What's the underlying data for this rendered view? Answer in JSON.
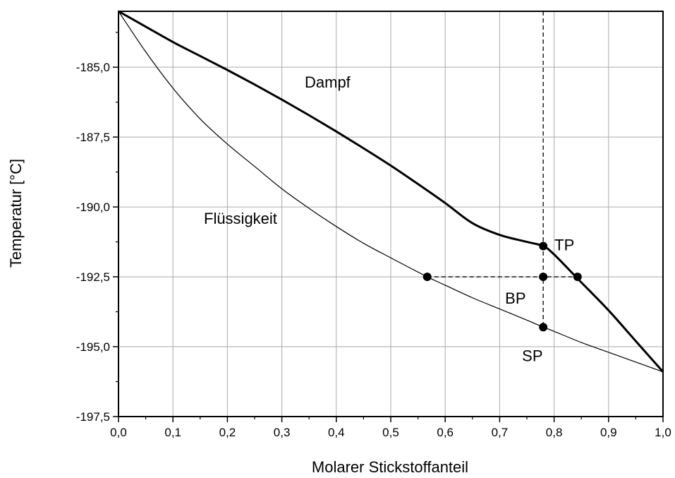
{
  "chart_data": {
    "type": "line",
    "xlabel": "Molarer Stickstoffanteil",
    "ylabel": "Temperatur [°C]",
    "xlim": [
      0.0,
      1.0
    ],
    "ylim": [
      -197.5,
      -183.0
    ],
    "x_ticks": [
      {
        "value": 0.0,
        "label": "0,0"
      },
      {
        "value": 0.1,
        "label": "0,1"
      },
      {
        "value": 0.2,
        "label": "0,2"
      },
      {
        "value": 0.3,
        "label": "0,3"
      },
      {
        "value": 0.4,
        "label": "0,4"
      },
      {
        "value": 0.5,
        "label": "0,5"
      },
      {
        "value": 0.6,
        "label": "0,6"
      },
      {
        "value": 0.7,
        "label": "0,7"
      },
      {
        "value": 0.8,
        "label": "0,8"
      },
      {
        "value": 0.9,
        "label": "0,9"
      },
      {
        "value": 1.0,
        "label": "1,0"
      }
    ],
    "y_ticks": [
      {
        "value": -185.0,
        "label": "-185,0"
      },
      {
        "value": -187.5,
        "label": "-187,5"
      },
      {
        "value": -190.0,
        "label": "-190,0"
      },
      {
        "value": -192.5,
        "label": "-192,5"
      },
      {
        "value": -195.0,
        "label": "-195,0"
      },
      {
        "value": -197.5,
        "label": "-197,5"
      }
    ],
    "grid": true,
    "series": [
      {
        "name": "Dampf",
        "line_width": "thick",
        "x": [
          0.0,
          0.05,
          0.1,
          0.15,
          0.2,
          0.25,
          0.3,
          0.35,
          0.4,
          0.45,
          0.5,
          0.55,
          0.6,
          0.65,
          0.7,
          0.75,
          0.78,
          0.8,
          0.84,
          0.85,
          0.9,
          0.95,
          1.0
        ],
        "y": [
          -183.0,
          -183.55,
          -184.1,
          -184.6,
          -185.1,
          -185.62,
          -186.16,
          -186.72,
          -187.3,
          -187.9,
          -188.52,
          -189.18,
          -189.86,
          -190.58,
          -191.0,
          -191.25,
          -191.4,
          -191.7,
          -192.5,
          -192.7,
          -193.7,
          -194.8,
          -195.9
        ]
      },
      {
        "name": "Flüssigkeit",
        "line_width": "thin",
        "x": [
          0.0,
          0.05,
          0.1,
          0.15,
          0.2,
          0.25,
          0.3,
          0.35,
          0.4,
          0.45,
          0.5,
          0.567,
          0.6,
          0.65,
          0.7,
          0.75,
          0.78,
          0.8,
          0.85,
          0.9,
          0.95,
          1.0
        ],
        "y": [
          -183.0,
          -184.45,
          -185.75,
          -186.85,
          -187.75,
          -188.55,
          -189.35,
          -190.05,
          -190.7,
          -191.3,
          -191.82,
          -192.5,
          -192.8,
          -193.25,
          -193.65,
          -194.05,
          -194.3,
          -194.45,
          -194.85,
          -195.2,
          -195.55,
          -195.9
        ]
      }
    ],
    "points": [
      {
        "label": "TP",
        "x": 0.78,
        "y": -191.4
      },
      {
        "label": "BP",
        "x": 0.78,
        "y": -192.5
      },
      {
        "label": "SP",
        "x": 0.78,
        "y": -194.3
      },
      {
        "label": "",
        "x": 0.567,
        "y": -192.5
      },
      {
        "label": "",
        "x": 0.843,
        "y": -192.5
      }
    ],
    "dashed_lines": [
      {
        "from": [
          0.567,
          -192.5
        ],
        "to": [
          0.843,
          -192.5
        ]
      },
      {
        "from": [
          0.78,
          -183.0
        ],
        "to": [
          0.78,
          -194.3
        ]
      }
    ]
  }
}
